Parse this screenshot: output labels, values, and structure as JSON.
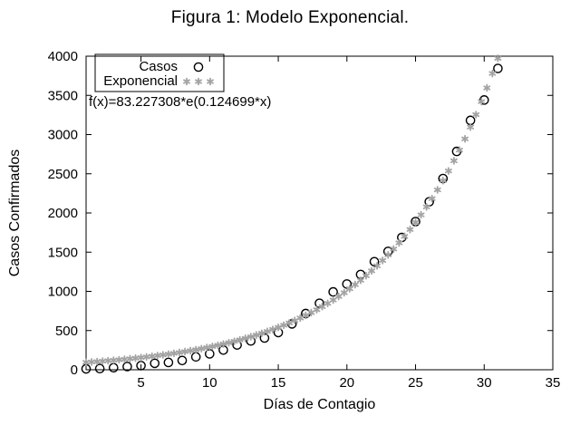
{
  "title": "Figura 1: Modelo Exponencial.",
  "annotation": "f(x)=83.227308*e(0.124699*x)",
  "colors": {
    "background": "#ffffff",
    "frame": "#000000",
    "casos": "#000000",
    "exponencial": "#a3a3a3"
  },
  "chart_data": {
    "type": "scatter",
    "title": "Figura 1: Modelo Exponencial.",
    "xlabel": "Días de Contagio",
    "ylabel": "Casos Confirmados",
    "xlim": [
      1,
      35
    ],
    "ylim": [
      0,
      4000
    ],
    "xticks": [
      5,
      10,
      15,
      20,
      25,
      30,
      35
    ],
    "yticks": [
      0,
      500,
      1000,
      1500,
      2000,
      2500,
      3000,
      3500,
      4000
    ],
    "grid": false,
    "legend_position": "top-left",
    "annotation": "f(x)=83.227308*e(0.124699*x)",
    "series": [
      {
        "name": "Casos",
        "marker": "open-circle",
        "color": "#000000",
        "x": [
          1,
          2,
          3,
          4,
          5,
          6,
          7,
          8,
          9,
          10,
          11,
          12,
          13,
          14,
          15,
          16,
          17,
          18,
          19,
          20,
          21,
          22,
          23,
          24,
          25,
          26,
          27,
          28,
          29,
          30,
          31
        ],
        "y": [
          11,
          15,
          26,
          41,
          53,
          82,
          93,
          118,
          164,
          203,
          251,
          316,
          367,
          405,
          475,
          585,
          717,
          848,
          993,
          1094,
          1215,
          1378,
          1510,
          1688,
          1890,
          2143,
          2439,
          2785,
          3181,
          3441,
          3844
        ]
      },
      {
        "name": "Exponencial",
        "marker": "asterisk",
        "color": "#a3a3a3",
        "function": "f(x)=83.227308*e(0.124699*x)",
        "coef_a": 83.227308,
        "coef_b": 0.124699,
        "sample_start": 1,
        "sample_step": 0.4,
        "sample_end": 34.6,
        "clip_ymax": 4000
      }
    ]
  }
}
